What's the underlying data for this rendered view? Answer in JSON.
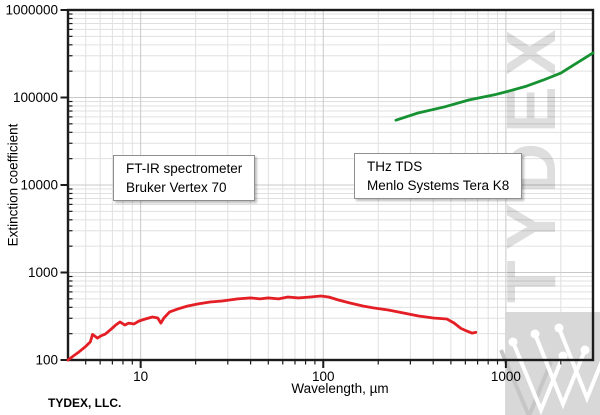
{
  "watermark": {
    "text": "TYDEX",
    "logo_icon": "tydex-w-logo"
  },
  "footer": {
    "company": "TYDEX, LLC."
  },
  "annotations": [
    {
      "lines": [
        "FT-IR spectrometer",
        "Bruker Vertex 70"
      ]
    },
    {
      "lines": [
        "THz TDS",
        "Menlo Systems Tera K8"
      ]
    }
  ],
  "chart_data": {
    "type": "line",
    "xlabel": "Wavelength, µm",
    "ylabel": "Extinction coefficient",
    "xscale": "log",
    "yscale": "log",
    "xlim": [
      4,
      3000
    ],
    "ylim": [
      100,
      1000000
    ],
    "xticks": [
      10,
      100,
      1000
    ],
    "yticks": [
      100,
      1000,
      10000,
      100000,
      1000000
    ],
    "grid": "major and minor log grid, light gray, legend none",
    "series": [
      {
        "name": "FT-IR spectrometer Bruker Vertex 70",
        "color": "#e41e25",
        "points": [
          [
            4,
            100
          ],
          [
            4.3,
            112
          ],
          [
            4.6,
            124
          ],
          [
            5,
            143
          ],
          [
            5.3,
            161
          ],
          [
            5.45,
            196
          ],
          [
            5.8,
            178
          ],
          [
            6.1,
            190
          ],
          [
            6.4,
            198
          ],
          [
            6.9,
            226
          ],
          [
            7.3,
            251
          ],
          [
            7.7,
            272
          ],
          [
            8.2,
            251
          ],
          [
            8.6,
            264
          ],
          [
            9.2,
            258
          ],
          [
            9.8,
            279
          ],
          [
            10.6,
            294
          ],
          [
            11.6,
            310
          ],
          [
            12.4,
            302
          ],
          [
            12.9,
            264
          ],
          [
            13.4,
            302
          ],
          [
            14.4,
            354
          ],
          [
            16,
            383
          ],
          [
            18,
            413
          ],
          [
            20.5,
            436
          ],
          [
            24,
            460
          ],
          [
            28,
            472
          ],
          [
            34,
            500
          ],
          [
            40,
            512
          ],
          [
            45,
            500
          ],
          [
            50,
            512
          ],
          [
            57,
            500
          ],
          [
            64,
            525
          ],
          [
            73,
            512
          ],
          [
            85,
            525
          ],
          [
            97,
            539
          ],
          [
            107,
            525
          ],
          [
            121,
            485
          ],
          [
            140,
            448
          ],
          [
            166,
            413
          ],
          [
            188,
            394
          ],
          [
            227,
            373
          ],
          [
            275,
            344
          ],
          [
            333,
            318
          ],
          [
            400,
            302
          ],
          [
            475,
            294
          ],
          [
            520,
            265
          ],
          [
            567,
            230
          ],
          [
            612,
            214
          ],
          [
            652,
            203
          ],
          [
            684,
            207
          ]
        ]
      },
      {
        "name": "THz TDS Menlo Systems Tera K8",
        "color": "#169232",
        "points": [
          [
            250,
            55000
          ],
          [
            330,
            66500
          ],
          [
            460,
            78000
          ],
          [
            630,
            94000
          ],
          [
            860,
            107000
          ],
          [
            1000,
            116000
          ],
          [
            1300,
            135000
          ],
          [
            1600,
            158000
          ],
          [
            2000,
            190000
          ],
          [
            2450,
            248000
          ],
          [
            3000,
            323000
          ]
        ]
      }
    ]
  }
}
